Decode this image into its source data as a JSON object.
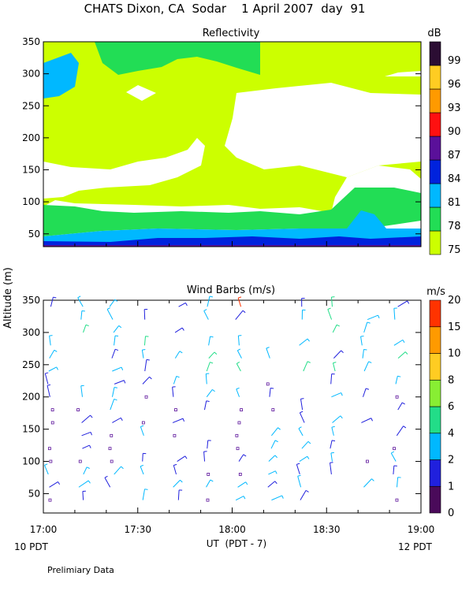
{
  "chart_data": [
    {
      "type": "heatmap",
      "title": "CHATS Dixon, CA  Sodar    1 April 2007  day  91",
      "subtitle": "Reflectivity",
      "ylabel": "Altitude (m)",
      "ylim": [
        30,
        350
      ],
      "yticks": [
        50,
        100,
        150,
        200,
        250,
        300,
        350
      ],
      "colorbar": {
        "unit": "dB",
        "levels": [
          75,
          78,
          81,
          84,
          87,
          90,
          93,
          96,
          99
        ],
        "colors": [
          "#ccff00",
          "#22dd55",
          "#00b8ff",
          "#0022dd",
          "#5a109a",
          "#ff1010",
          "#ff9a00",
          "#ffcc22",
          "#2b0d33"
        ]
      },
      "regions": [
        {
          "level": 75,
          "color": "#ccff00"
        },
        {
          "level": 78,
          "color": "#22dd55"
        },
        {
          "level": 81,
          "color": "#00b8ff"
        },
        {
          "level": 84,
          "color": "#0022dd"
        },
        {
          "level": 87,
          "color": "#5a109a"
        }
      ]
    },
    {
      "type": "scatter",
      "subtitle": "Wind Barbs (m/s)",
      "ylabel": "Altitude (m)",
      "xlabel": "UT  (PDT - 7)",
      "xlim": [
        "17:00",
        "19:00"
      ],
      "xticks": [
        "17:00",
        "17:30",
        "18:00",
        "18:30",
        "19:00"
      ],
      "ylim": [
        20,
        350
      ],
      "yticks": [
        50,
        100,
        150,
        200,
        250,
        300,
        350
      ],
      "colorbar": {
        "unit": "m/s",
        "levels": [
          0,
          1,
          2,
          4,
          6,
          8,
          10,
          15,
          20
        ],
        "colors": [
          "#4a0a5a",
          "#2020dd",
          "#00b8ff",
          "#22dd88",
          "#88ee33",
          "#ffcc22",
          "#ff9a00",
          "#ff3300"
        ]
      },
      "bottom_left_label": "10 PDT",
      "bottom_right_label": "12 PDT",
      "note": "Prelimiary Data"
    }
  ]
}
